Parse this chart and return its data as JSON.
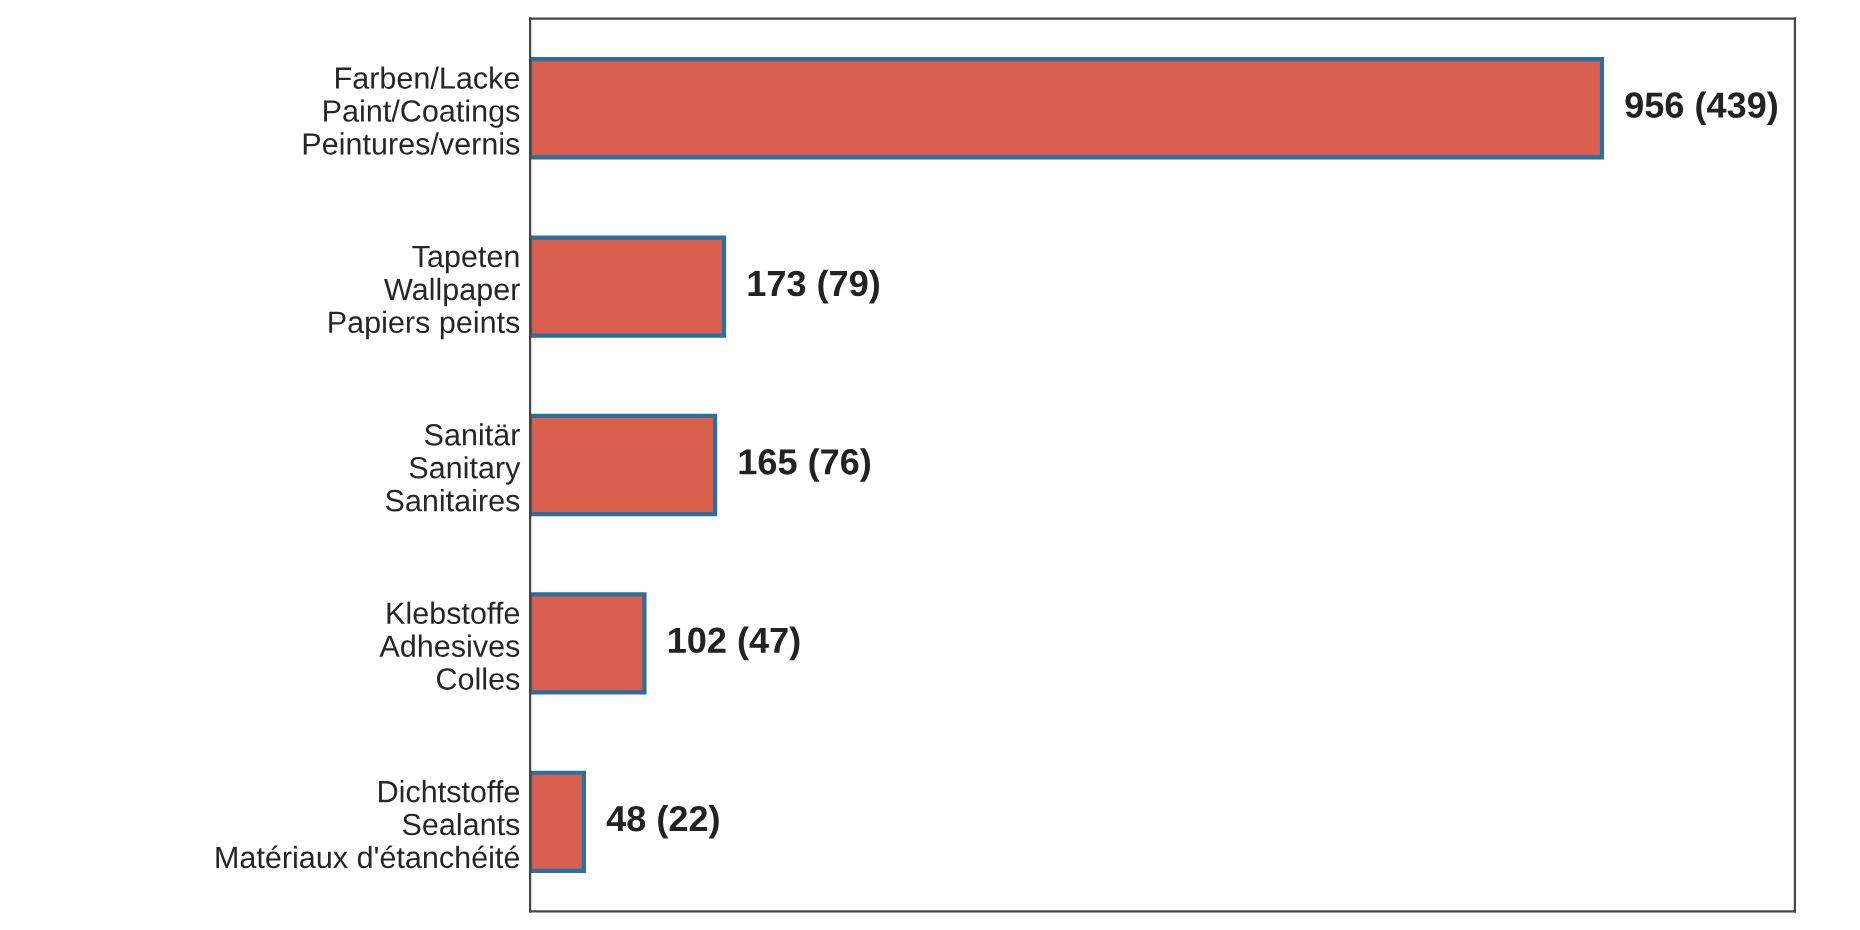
{
  "chart_data": {
    "type": "bar",
    "orientation": "horizontal",
    "categories": [
      "Farben/Lacke\nPaint/Coatings\nPeintures/vernis",
      "Tapeten\nWallpaper\nPapiers peints",
      "Sanitär\nSanitary\nSanitaires",
      "Klebstoffe\nAdhesives\nColles",
      "Dichtstoffe\nSealants\nMatériaux d'étanchéité"
    ],
    "values": [
      956,
      173,
      165,
      102,
      48
    ],
    "value_labels": [
      "956 (439)",
      "173 (79)",
      "165 (76)",
      "102 (47)",
      "48 (22)"
    ],
    "color": "#d9604f",
    "tick_labels": "y"
  }
}
